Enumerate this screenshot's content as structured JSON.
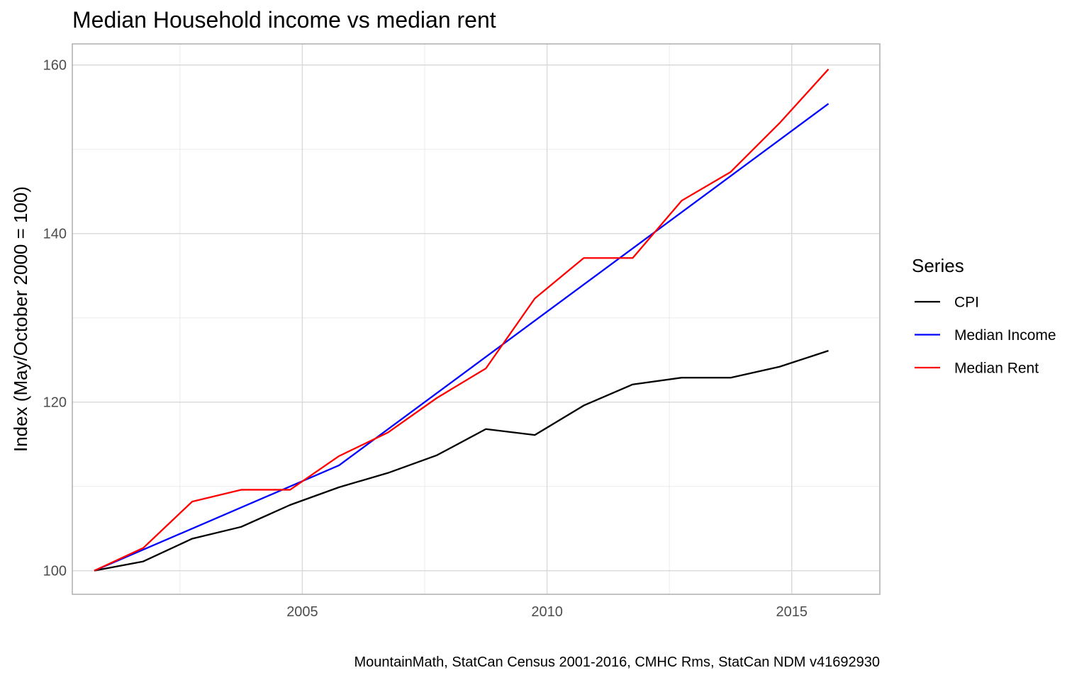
{
  "chart_data": {
    "type": "line",
    "title": "Median Household income vs median rent",
    "xlabel": "",
    "ylabel": "Index (May/October 2000 = 100)",
    "caption": "MountainMath, StatCan Census 2001-2016, CMHC Rms, StatCan NDM v41692930",
    "xlim": [
      2000.3,
      2016.8
    ],
    "ylim": [
      97.2,
      162.5
    ],
    "x_ticks": [
      2005,
      2010,
      2015
    ],
    "x_tick_labels": [
      "2005",
      "2010",
      "2015"
    ],
    "y_ticks": [
      100,
      120,
      140,
      160
    ],
    "y_tick_labels": [
      "100",
      "120",
      "140",
      "160"
    ],
    "grid": true,
    "legend": {
      "title": "Series",
      "position": "right"
    },
    "series": [
      {
        "name": "CPI",
        "color": "#000000",
        "x": [
          2000.75,
          2001.75,
          2002.75,
          2003.75,
          2004.75,
          2005.75,
          2006.75,
          2007.75,
          2008.75,
          2009.75,
          2010.75,
          2011.75,
          2012.75,
          2013.75,
          2014.75,
          2015.75
        ],
        "y": [
          100,
          101.1,
          103.8,
          105.2,
          107.8,
          109.9,
          111.6,
          113.7,
          116.8,
          116.1,
          119.6,
          122.1,
          122.9,
          122.9,
          124.2,
          126.1
        ]
      },
      {
        "name": "Median Income",
        "color": "#0000ff",
        "x": [
          2000.75,
          2005.75,
          2015.75
        ],
        "y": [
          100,
          112.5,
          155.4
        ]
      },
      {
        "name": "Median Rent",
        "color": "#ff0000",
        "x": [
          2000.75,
          2001.75,
          2002.75,
          2003.75,
          2004.75,
          2005.75,
          2006.75,
          2007.75,
          2008.75,
          2009.75,
          2010.75,
          2011.75,
          2012.75,
          2013.75,
          2014.75,
          2015.75
        ],
        "y": [
          100,
          102.7,
          108.2,
          109.6,
          109.6,
          113.6,
          116.4,
          120.5,
          124.0,
          132.3,
          137.1,
          137.1,
          143.9,
          147.3,
          153.1,
          159.5
        ]
      }
    ]
  }
}
